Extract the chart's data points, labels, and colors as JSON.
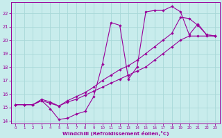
{
  "xlabel": "Windchill (Refroidissement éolien,°C)",
  "bg_color": "#c8ecec",
  "grid_color": "#a8d8d8",
  "line_color": "#990099",
  "xlim": [
    -0.5,
    23.5
  ],
  "ylim": [
    13.8,
    22.8
  ],
  "xticks": [
    0,
    1,
    2,
    3,
    4,
    5,
    6,
    7,
    8,
    9,
    10,
    11,
    12,
    13,
    14,
    15,
    16,
    17,
    18,
    19,
    20,
    21,
    22,
    23
  ],
  "yticks": [
    14,
    15,
    16,
    17,
    18,
    19,
    20,
    21,
    22
  ],
  "line1_x": [
    0,
    1,
    2,
    3,
    4,
    5,
    6,
    7,
    8,
    9,
    10,
    11,
    12,
    13,
    14,
    15,
    16,
    17,
    18,
    19,
    20,
    21,
    22,
    23
  ],
  "line1_y": [
    15.2,
    15.2,
    15.2,
    15.5,
    14.9,
    14.1,
    14.2,
    14.5,
    14.7,
    15.8,
    18.2,
    21.3,
    21.1,
    17.1,
    18.0,
    22.1,
    22.2,
    22.2,
    22.5,
    22.1,
    20.4,
    21.2,
    20.4,
    20.3
  ],
  "line2_x": [
    0,
    1,
    2,
    3,
    4,
    5,
    6,
    7,
    8,
    9,
    10,
    11,
    12,
    13,
    14,
    15,
    16,
    17,
    18,
    19,
    20,
    21,
    22,
    23
  ],
  "line2_y": [
    15.2,
    15.2,
    15.2,
    15.6,
    15.4,
    15.1,
    15.5,
    15.8,
    16.1,
    16.5,
    17.0,
    17.4,
    17.8,
    18.1,
    18.5,
    19.0,
    19.5,
    20.0,
    20.5,
    21.7,
    21.6,
    21.1,
    20.4,
    20.3
  ],
  "line3_x": [
    0,
    1,
    2,
    3,
    4,
    5,
    6,
    7,
    8,
    9,
    10,
    11,
    12,
    13,
    14,
    15,
    16,
    17,
    18,
    19,
    20,
    21,
    22,
    23
  ],
  "line3_y": [
    15.2,
    15.2,
    15.2,
    15.5,
    15.3,
    15.1,
    15.4,
    15.6,
    15.9,
    16.2,
    16.5,
    16.8,
    17.1,
    17.4,
    17.7,
    18.0,
    18.5,
    19.0,
    19.5,
    20.0,
    20.3,
    20.3,
    20.3,
    20.3
  ]
}
